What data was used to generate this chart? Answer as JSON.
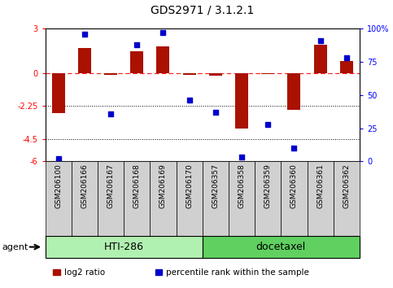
{
  "title": "GDS2971 / 3.1.2.1",
  "samples": [
    "GSM206100",
    "GSM206166",
    "GSM206167",
    "GSM206168",
    "GSM206169",
    "GSM206170",
    "GSM206357",
    "GSM206358",
    "GSM206359",
    "GSM206360",
    "GSM206361",
    "GSM206362"
  ],
  "log2_ratio": [
    -2.7,
    1.7,
    -0.15,
    1.5,
    1.8,
    -0.15,
    -0.2,
    -3.8,
    -0.1,
    -2.5,
    1.9,
    0.8
  ],
  "percentile_rank": [
    2,
    96,
    36,
    88,
    97,
    46,
    37,
    3,
    28,
    10,
    91,
    78
  ],
  "groups": [
    {
      "label": "HTI-286",
      "start": 0,
      "end": 6,
      "color": "#b0f0b0"
    },
    {
      "label": "docetaxel",
      "start": 6,
      "end": 12,
      "color": "#60d060"
    }
  ],
  "ylim": [
    -6,
    3
  ],
  "yticks_left": [
    -6,
    -4.5,
    -2.25,
    0,
    3
  ],
  "ytick_labels_left": [
    "-6",
    "-4.5",
    "-2.25",
    "0",
    "3"
  ],
  "yticks_right": [
    0,
    25,
    50,
    75,
    100
  ],
  "ytick_labels_right": [
    "0",
    "25",
    "50",
    "75",
    "100%"
  ],
  "hline_y": 0,
  "dotted_lines": [
    -2.25,
    -4.5
  ],
  "bar_color": "#aa1100",
  "dot_color": "#0000cc",
  "bar_width": 0.5,
  "legend_items": [
    {
      "color": "#aa1100",
      "label": "log2 ratio"
    },
    {
      "color": "#0000cc",
      "label": "percentile rank within the sample"
    }
  ],
  "agent_label": "agent",
  "tick_label_fontsize": 7,
  "title_fontsize": 10,
  "background_color": "#ffffff"
}
